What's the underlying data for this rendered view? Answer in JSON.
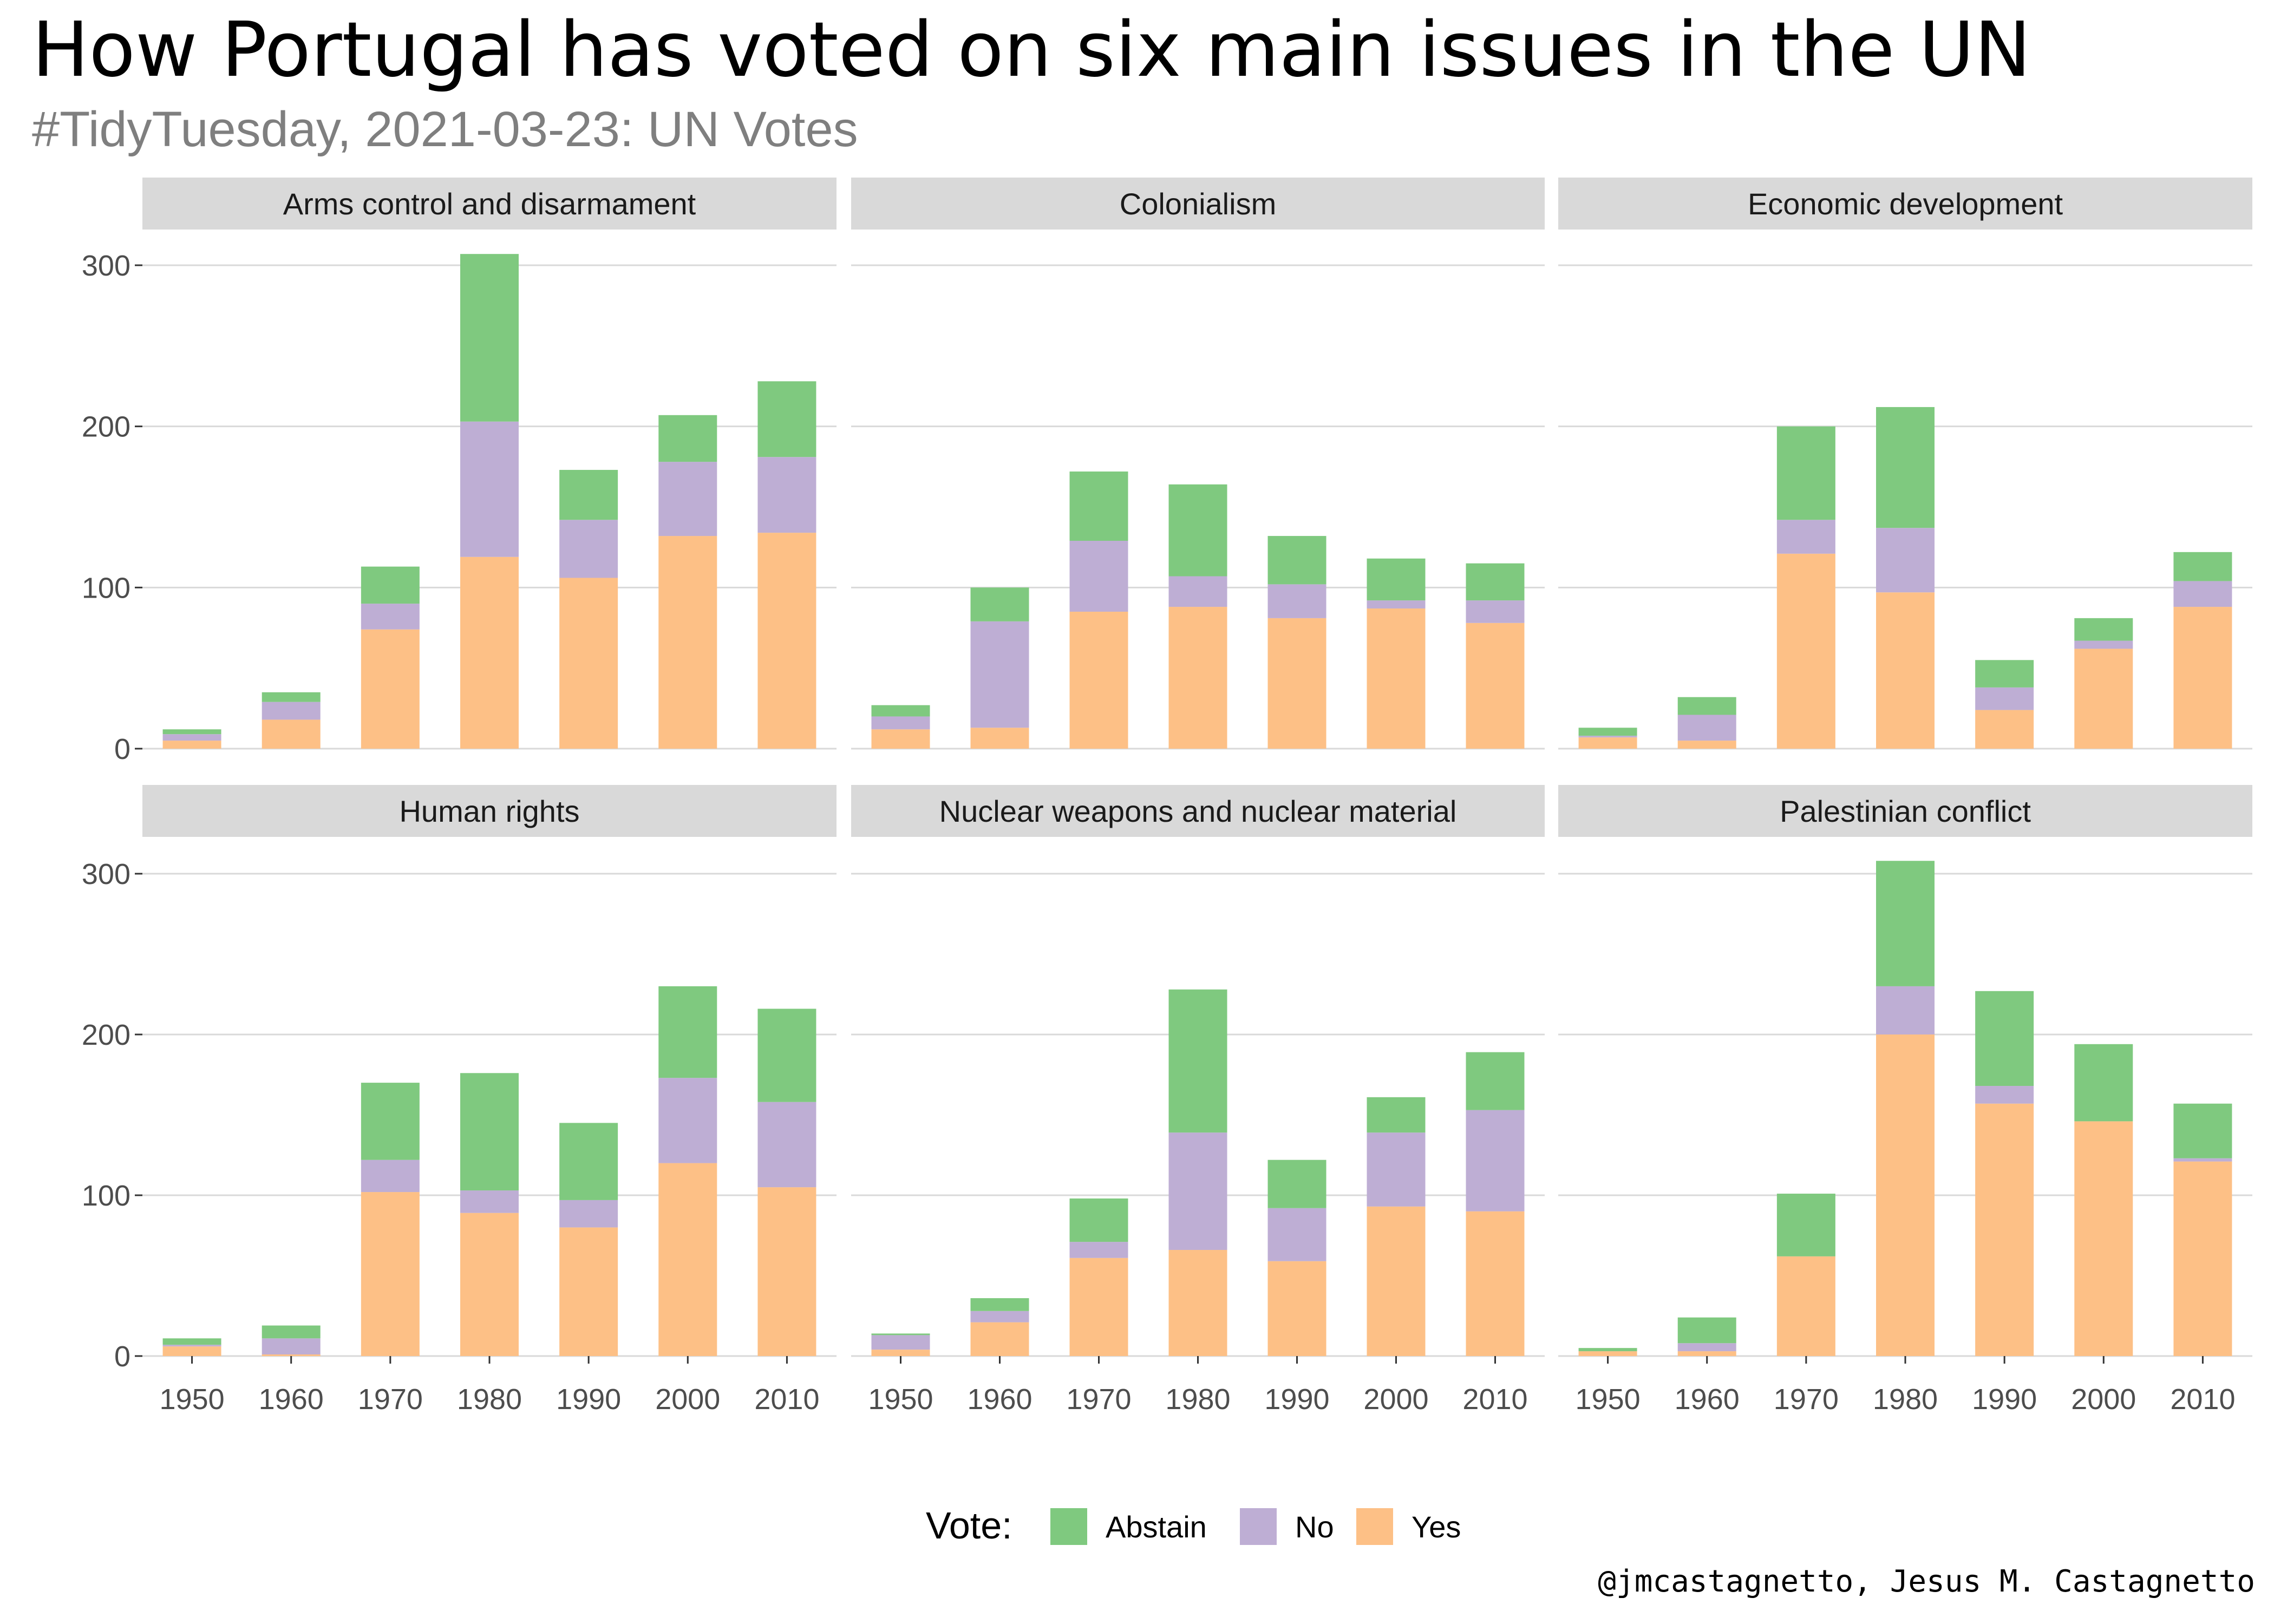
{
  "title": "How Portugal has voted on six main issues in the UN",
  "subtitle": "#TidyTuesday, 2021-03-23: UN Votes",
  "caption": "@jmcastagnetto, Jesus M. Castagnetto",
  "legend": {
    "title": "Vote:",
    "position": "bottom",
    "items": [
      {
        "label": "Abstain",
        "color": "#7fc97f"
      },
      {
        "label": "No",
        "color": "#beaed4"
      },
      {
        "label": "Yes",
        "color": "#fdc086"
      }
    ]
  },
  "chart_data": {
    "type": "bar",
    "stacked": true,
    "facet_layout": "2 rows x 3 columns",
    "grid": true,
    "categories": [
      "1950",
      "1960",
      "1970",
      "1980",
      "1990",
      "2000",
      "2010"
    ],
    "ylim": [
      0,
      325
    ],
    "yticks": [
      "0",
      "100",
      "200",
      "300"
    ],
    "stack_order": [
      "Yes",
      "No",
      "Abstain"
    ],
    "colors": {
      "Abstain": "#7fc97f",
      "No": "#beaed4",
      "Yes": "#fdc086"
    },
    "panels": [
      {
        "label": "Arms control and disarmament",
        "series": [
          {
            "name": "Yes",
            "values": [
              5,
              18,
              74,
              119,
              106,
              132,
              134
            ]
          },
          {
            "name": "No",
            "values": [
              4,
              11,
              16,
              84,
              36,
              46,
              47
            ]
          },
          {
            "name": "Abstain",
            "values": [
              3,
              6,
              23,
              104,
              31,
              29,
              47
            ]
          }
        ]
      },
      {
        "label": "Colonialism",
        "series": [
          {
            "name": "Yes",
            "values": [
              12,
              13,
              85,
              88,
              81,
              87,
              78
            ]
          },
          {
            "name": "No",
            "values": [
              8,
              66,
              44,
              19,
              21,
              5,
              14
            ]
          },
          {
            "name": "Abstain",
            "values": [
              7,
              21,
              43,
              57,
              30,
              26,
              23
            ]
          }
        ]
      },
      {
        "label": "Economic development",
        "series": [
          {
            "name": "Yes",
            "values": [
              7,
              5,
              121,
              97,
              24,
              62,
              88
            ]
          },
          {
            "name": "No",
            "values": [
              1,
              16,
              21,
              40,
              14,
              5,
              16
            ]
          },
          {
            "name": "Abstain",
            "values": [
              5,
              11,
              58,
              75,
              17,
              14,
              18
            ]
          }
        ]
      },
      {
        "label": "Human rights",
        "series": [
          {
            "name": "Yes",
            "values": [
              6,
              1,
              102,
              89,
              80,
              120,
              105
            ]
          },
          {
            "name": "No",
            "values": [
              1,
              10,
              20,
              14,
              17,
              53,
              53
            ]
          },
          {
            "name": "Abstain",
            "values": [
              4,
              8,
              48,
              73,
              48,
              57,
              58
            ]
          }
        ]
      },
      {
        "label": "Nuclear weapons and nuclear material",
        "series": [
          {
            "name": "Yes",
            "values": [
              4,
              21,
              61,
              66,
              59,
              93,
              90
            ]
          },
          {
            "name": "No",
            "values": [
              9,
              7,
              10,
              73,
              33,
              46,
              63
            ]
          },
          {
            "name": "Abstain",
            "values": [
              1,
              8,
              27,
              89,
              30,
              22,
              36
            ]
          }
        ]
      },
      {
        "label": "Palestinian conflict",
        "series": [
          {
            "name": "Yes",
            "values": [
              3,
              3,
              62,
              200,
              157,
              146,
              121
            ]
          },
          {
            "name": "No",
            "values": [
              0,
              5,
              0,
              30,
              11,
              0,
              2
            ]
          },
          {
            "name": "Abstain",
            "values": [
              2,
              16,
              39,
              78,
              59,
              48,
              34
            ]
          }
        ]
      }
    ]
  }
}
